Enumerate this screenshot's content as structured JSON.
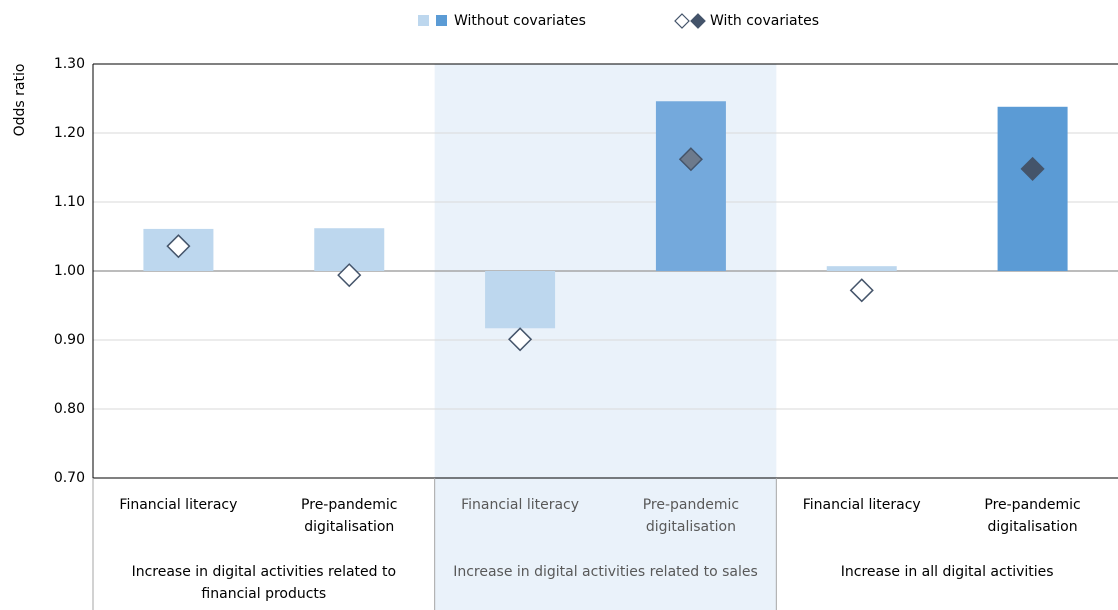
{
  "chart_data": {
    "type": "bar",
    "legend_position": "top",
    "grid": true,
    "y_label": "Odds ratio",
    "ylim": [
      0.7,
      1.3
    ],
    "yticks": [
      {
        "value": 0.7,
        "label": "0.70"
      },
      {
        "value": 0.8,
        "label": "0.80"
      },
      {
        "value": 0.9,
        "label": "0.90"
      },
      {
        "value": 1.0,
        "label": "1.00"
      },
      {
        "value": 1.1,
        "label": "1.10"
      },
      {
        "value": 1.2,
        "label": "1.20"
      },
      {
        "value": 1.3,
        "label": "1.30"
      }
    ],
    "baseline": 1.0,
    "categories": [
      "Financial literacy",
      "Pre-pandemic digitalisation",
      "Financial literacy",
      "Pre-pandemic digitalisation",
      "Financial literacy",
      "Pre-pandemic digitalisation"
    ],
    "groups": [
      "Increase in digital activities related to financial products",
      "Increase in digital activities related to sales",
      "Increase in all digital activities"
    ],
    "highlighted_group": 1,
    "series": [
      {
        "name": "Without covariates",
        "mark": "bar",
        "colors": [
          "#bdd7ee",
          "#bdd7ee",
          "#bdd7ee",
          "#74a9dc",
          "#bdd7ee",
          "#5b9bd5"
        ],
        "values": [
          1.061,
          1.062,
          0.917,
          1.246,
          1.007,
          1.238
        ]
      },
      {
        "name": "With covariates",
        "mark": "diamond",
        "stroke": "#44546a",
        "colors": [
          "#ffffff",
          "#ffffff",
          "#ffffff",
          "#6d7a8c",
          "#ffffff",
          "#44546a"
        ],
        "values": [
          1.036,
          0.994,
          0.901,
          1.162,
          0.972,
          1.148
        ]
      }
    ]
  }
}
